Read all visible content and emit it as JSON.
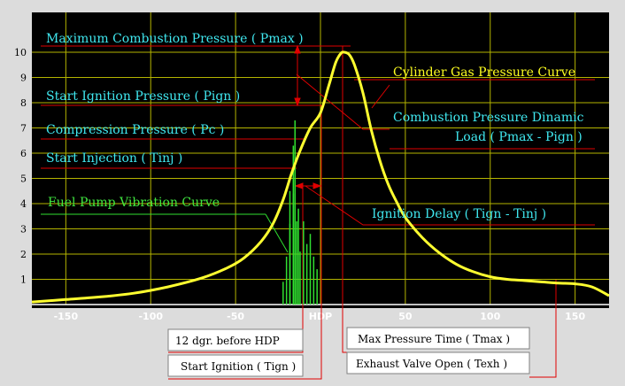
{
  "chart_data": {
    "type": "line",
    "title": "",
    "xlabel": "",
    "ylabel": "",
    "xlim": [
      -170,
      170
    ],
    "ylim": [
      0,
      11
    ],
    "x_ticks": [
      "-150",
      "-100",
      "-50",
      "HDP",
      "50",
      "100",
      "150"
    ],
    "x_tick_values": [
      -150,
      -100,
      -50,
      0,
      50,
      100,
      150
    ],
    "y_ticks": [
      "1",
      "2",
      "3",
      "4",
      "5",
      "6",
      "7",
      "8",
      "9",
      "10"
    ],
    "y_tick_values": [
      1,
      2,
      3,
      4,
      5,
      6,
      7,
      8,
      9,
      10
    ],
    "grid": true,
    "series": [
      {
        "name": "Cylinder Gas Pressure Curve",
        "x": [
          -170,
          -150,
          -130,
          -110,
          -90,
          -70,
          -55,
          -45,
          -35,
          -28,
          -22,
          -17,
          -12,
          -6,
          0,
          5,
          9,
          12,
          14,
          17,
          20,
          25,
          30,
          35,
          40,
          45,
          50,
          60,
          70,
          80,
          90,
          100,
          110,
          120,
          130,
          140,
          150,
          160,
          170
        ],
        "y": [
          0.1,
          0.2,
          0.3,
          0.45,
          0.7,
          1.05,
          1.45,
          1.85,
          2.5,
          3.2,
          4.15,
          5.2,
          6.1,
          7.0,
          7.6,
          8.7,
          9.6,
          9.95,
          10.0,
          9.9,
          9.5,
          8.4,
          6.9,
          5.7,
          4.75,
          4.05,
          3.45,
          2.65,
          2.05,
          1.6,
          1.3,
          1.1,
          1.0,
          0.95,
          0.9,
          0.85,
          0.82,
          0.7,
          0.35
        ]
      },
      {
        "name": "Fuel Pump Vibration Curve",
        "spikes": [
          [
            -22,
            0.9
          ],
          [
            -20,
            1.9
          ],
          [
            -18,
            3.2
          ],
          [
            -16,
            4.4
          ],
          [
            -14,
            3.3
          ],
          [
            -12,
            2.1
          ],
          [
            -10,
            3.3
          ],
          [
            -8,
            2.4
          ],
          [
            -6,
            2.8
          ],
          [
            -4,
            1.9
          ],
          [
            -2,
            1.4
          ]
        ],
        "lead_in": [
          [
            -18,
            4.5
          ],
          [
            -16,
            6.3
          ],
          [
            -15,
            7.3
          ],
          [
            -13,
            3.8
          ]
        ]
      }
    ],
    "annotations": [
      {
        "id": "pmax",
        "text": "Maximum Combustion Pressure ( Pmax )"
      },
      {
        "id": "pign",
        "text": "Start Ignition Pressure ( Pign )"
      },
      {
        "id": "pc",
        "text": "Compression Pressure ( Pc )"
      },
      {
        "id": "tinj",
        "text": "Start Injection ( Tinj )"
      },
      {
        "id": "fuel",
        "text": "Fuel Pump Vibration Curve"
      },
      {
        "id": "gas",
        "text": "Cylinder Gas Pressure Curve"
      },
      {
        "id": "dyn1",
        "text": "Combustion Pressure Dinamic"
      },
      {
        "id": "dyn2",
        "text": "Load ( Pmax - Pign )"
      },
      {
        "id": "delay",
        "text": "Ignition Delay ( Tign - Tinj )"
      },
      {
        "id": "before",
        "text": "12 dgr. before HDP"
      },
      {
        "id": "tign",
        "text": "Start Ignition ( Tign )"
      },
      {
        "id": "tmax",
        "text": "Max Pressure Time ( Tmax )"
      },
      {
        "id": "texh",
        "text": "Exhaust Valve Open ( Texh )"
      }
    ],
    "colors": {
      "background": "#000000",
      "grid": "#b4b400",
      "pressure_curve": "#ffff30",
      "fuel_curve": "#30e030",
      "marker_lines": "#e00000",
      "axis_line": "#ffffff"
    }
  }
}
